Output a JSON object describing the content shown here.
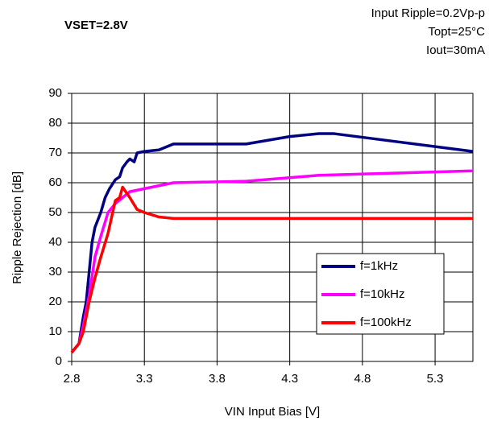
{
  "chart_data": {
    "type": "line",
    "title": "VSET=2.8V",
    "annotations": [
      "Input Ripple=0.2Vp-p",
      "Topt=25°C",
      "Iout=30mA"
    ],
    "xlabel": "VIN Input Bias [V]",
    "ylabel": "Ripple Rejection [dB]",
    "xlim": [
      2.8,
      5.56
    ],
    "ylim": [
      0,
      90
    ],
    "xticks": [
      2.8,
      3.3,
      3.8,
      4.3,
      4.8,
      5.3
    ],
    "yticks": [
      0,
      10,
      20,
      30,
      40,
      50,
      60,
      70,
      80,
      90
    ],
    "grid": true,
    "legend": "lower right",
    "series": [
      {
        "name": "f=1kHz",
        "color": "#000080",
        "x": [
          2.8,
          2.85,
          2.88,
          2.9,
          2.92,
          2.94,
          2.96,
          3.0,
          3.03,
          3.06,
          3.1,
          3.13,
          3.15,
          3.18,
          3.2,
          3.23,
          3.25,
          3.3,
          3.4,
          3.5,
          4.0,
          4.3,
          4.5,
          4.6,
          5.0,
          5.56
        ],
        "values": [
          3,
          6,
          15,
          20,
          30,
          40,
          45,
          50,
          55,
          58,
          61,
          62,
          65,
          67,
          68,
          67,
          70,
          70.5,
          71,
          73,
          73,
          75.5,
          76.5,
          76.5,
          74,
          70.5
        ]
      },
      {
        "name": "f=10kHz",
        "color": "#ff00ff",
        "x": [
          2.8,
          2.85,
          2.88,
          2.92,
          2.96,
          3.0,
          3.05,
          3.1,
          3.15,
          3.2,
          3.3,
          3.5,
          4.0,
          4.5,
          5.56
        ],
        "values": [
          3,
          6,
          12,
          22,
          35,
          42,
          50,
          53,
          55,
          57,
          58,
          60,
          60.5,
          62.5,
          64
        ]
      },
      {
        "name": "f=100kHz",
        "color": "#ff0000",
        "x": [
          2.8,
          2.85,
          2.88,
          2.92,
          2.96,
          3.0,
          3.05,
          3.1,
          3.13,
          3.15,
          3.2,
          3.25,
          3.3,
          3.4,
          3.5,
          5.56
        ],
        "values": [
          3,
          6,
          10,
          20,
          28,
          35,
          43,
          54,
          55,
          58.5,
          55,
          51,
          50,
          48.5,
          48,
          48
        ]
      }
    ]
  }
}
